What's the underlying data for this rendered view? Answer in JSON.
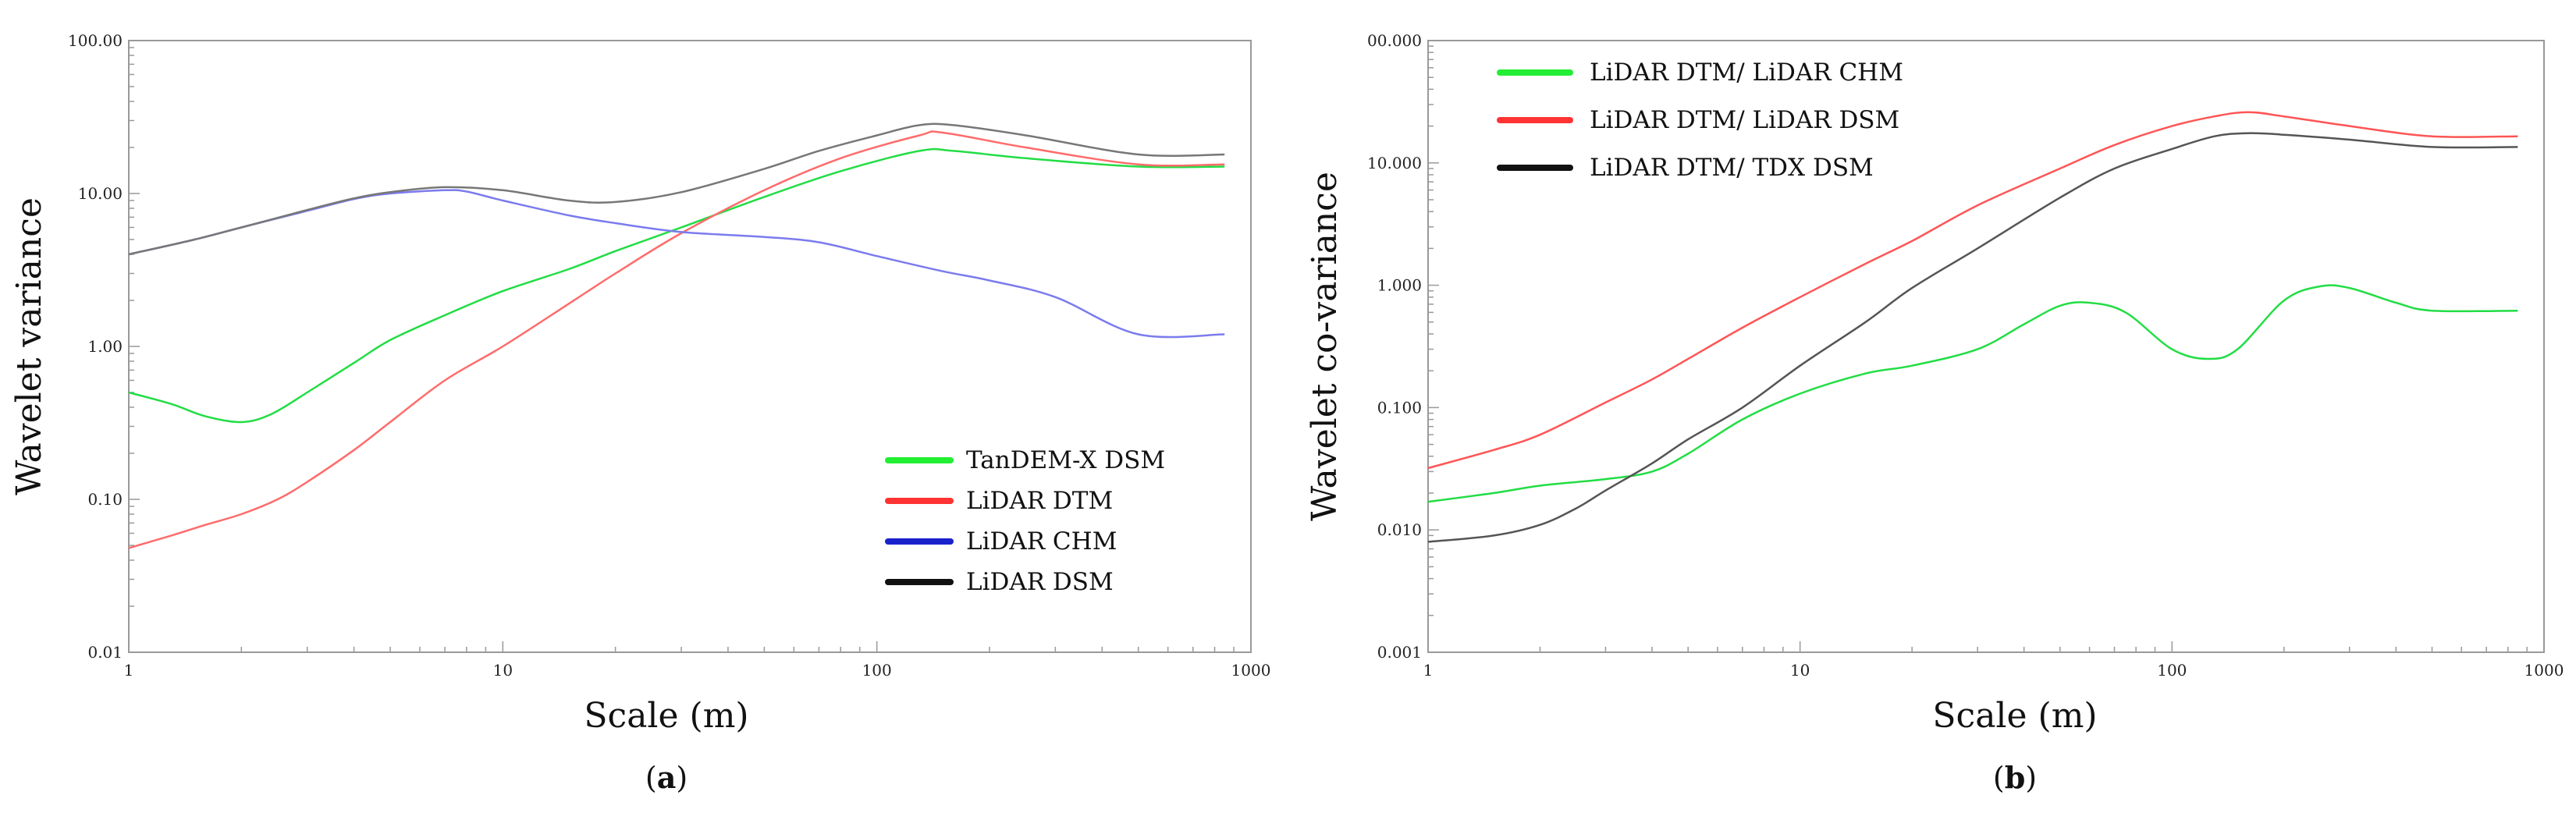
{
  "chart_data": [
    {
      "type": "line",
      "caption": "a",
      "xlabel": "Scale (m)",
      "ylabel": "Wavelet variance",
      "xscale": "log",
      "yscale": "log",
      "xlim": [
        1,
        1000
      ],
      "ylim": [
        0.01,
        100
      ],
      "xticks": [
        "1",
        "10",
        "100",
        "1000"
      ],
      "yticks": [
        "0.01",
        "0.10",
        "1.00",
        "10.00",
        "100.00"
      ],
      "grid": false,
      "legend_position": "bottom-right",
      "series": [
        {
          "name": "TanDEM-X DSM",
          "color": "#22dd44",
          "legend_color": "#22ee33",
          "x": [
            1,
            1.3,
            1.6,
            2,
            2.4,
            3,
            4,
            5,
            7,
            10,
            15,
            20,
            30,
            50,
            80,
            130,
            160,
            250,
            500,
            850
          ],
          "y": [
            0.5,
            0.42,
            0.35,
            0.32,
            0.36,
            0.5,
            0.78,
            1.1,
            1.6,
            2.3,
            3.2,
            4.2,
            6.0,
            9.5,
            14,
            19,
            19,
            17,
            15,
            15
          ]
        },
        {
          "name": "LiDAR DTM",
          "color": "#ff6b6b",
          "legend_color": "#ff3333",
          "x": [
            1,
            1.3,
            1.6,
            2,
            2.5,
            3,
            4,
            5,
            7,
            10,
            15,
            20,
            30,
            50,
            80,
            130,
            150,
            250,
            500,
            850
          ],
          "y": [
            0.048,
            0.058,
            0.068,
            0.08,
            0.1,
            0.13,
            0.21,
            0.32,
            0.6,
            1.0,
            1.9,
            3.0,
            5.5,
            10.5,
            17,
            24,
            25,
            20,
            15.5,
            15.5
          ]
        },
        {
          "name": "LiDAR CHM",
          "color": "#7b7bee",
          "legend_color": "#1a22cc",
          "x": [
            1,
            1.5,
            2,
            3,
            4,
            5,
            7,
            8,
            10,
            15,
            20,
            30,
            50,
            70,
            100,
            150,
            200,
            300,
            500,
            850
          ],
          "y": [
            4.0,
            5.0,
            6.0,
            7.7,
            9.2,
            10.0,
            10.5,
            10.3,
            9.0,
            7.2,
            6.4,
            5.6,
            5.2,
            4.8,
            3.9,
            3.1,
            2.7,
            2.1,
            1.2,
            1.2
          ]
        },
        {
          "name": "LiDAR DSM",
          "color": "#777777",
          "legend_color": "#111111",
          "x": [
            1,
            1.5,
            2,
            3,
            4,
            5,
            7,
            10,
            15,
            20,
            30,
            50,
            70,
            100,
            130,
            160,
            250,
            500,
            850
          ],
          "y": [
            4.0,
            5.0,
            6.0,
            7.8,
            9.3,
            10.2,
            11.0,
            10.5,
            9.0,
            8.8,
            10.2,
            14.5,
            19,
            24,
            28,
            28,
            24,
            18,
            18
          ]
        }
      ]
    },
    {
      "type": "line",
      "caption": "b",
      "xlabel": "Scale (m)",
      "ylabel": "Wavelet co-variance",
      "xscale": "log",
      "yscale": "log",
      "xlim": [
        1,
        1000
      ],
      "ylim": [
        0.001,
        100
      ],
      "xticks": [
        "1",
        "10",
        "100",
        "1000"
      ],
      "yticks": [
        "0.001",
        "0.010",
        "0.100",
        "1.000",
        "10.000",
        "00.000"
      ],
      "grid": false,
      "legend_position": "top-left",
      "series": [
        {
          "name": "LiDAR DTM/ LiDAR CHM",
          "color": "#22dd44",
          "legend_color": "#22ee33",
          "x": [
            1,
            1.5,
            2,
            3,
            4,
            5,
            7,
            10,
            15,
            20,
            30,
            40,
            50,
            60,
            75,
            100,
            125,
            150,
            200,
            250,
            300,
            400,
            500,
            850
          ],
          "y": [
            0.017,
            0.02,
            0.023,
            0.026,
            0.03,
            0.042,
            0.08,
            0.13,
            0.19,
            0.22,
            0.3,
            0.48,
            0.68,
            0.72,
            0.6,
            0.3,
            0.25,
            0.3,
            0.75,
            0.98,
            0.95,
            0.72,
            0.62,
            0.62
          ]
        },
        {
          "name": "LiDAR DTM/ LiDAR DSM",
          "color": "#ff5555",
          "legend_color": "#ff3333",
          "x": [
            1,
            1.5,
            2,
            3,
            4,
            5,
            7,
            10,
            15,
            20,
            30,
            50,
            70,
            100,
            130,
            160,
            200,
            300,
            500,
            850
          ],
          "y": [
            0.032,
            0.045,
            0.06,
            0.11,
            0.17,
            0.25,
            0.45,
            0.8,
            1.5,
            2.3,
            4.5,
            9.0,
            14,
            20,
            24,
            26,
            24,
            20,
            16.5,
            16.5
          ]
        },
        {
          "name": "LiDAR DTM/ TDX DSM",
          "color": "#555555",
          "legend_color": "#111111",
          "x": [
            1,
            1.5,
            2,
            2.5,
            3,
            4,
            5,
            7,
            10,
            15,
            20,
            30,
            50,
            70,
            100,
            130,
            160,
            200,
            300,
            500,
            850
          ],
          "y": [
            0.008,
            0.009,
            0.011,
            0.015,
            0.021,
            0.035,
            0.055,
            0.1,
            0.22,
            0.5,
            0.95,
            2.0,
            5.2,
            9.0,
            13,
            16.5,
            17.5,
            17,
            15.5,
            13.5,
            13.5
          ]
        }
      ]
    }
  ]
}
